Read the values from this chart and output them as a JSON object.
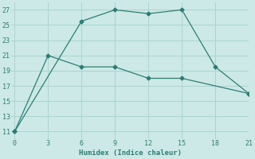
{
  "line1_x": [
    0,
    6,
    9,
    12,
    15,
    18,
    21
  ],
  "line1_y": [
    11,
    25.5,
    27,
    26.5,
    27,
    19.5,
    16
  ],
  "line2_x": [
    0,
    3,
    6,
    9,
    12,
    15,
    21
  ],
  "line2_y": [
    11,
    21,
    19.5,
    19.5,
    18,
    18,
    16
  ],
  "line_color": "#2e7d72",
  "bg_color": "#cce9e7",
  "grid_color": "#aad4d1",
  "xlabel": "Humidex (Indice chaleur)",
  "yticks": [
    11,
    13,
    15,
    17,
    19,
    21,
    23,
    25,
    27
  ],
  "xticks": [
    0,
    3,
    6,
    9,
    12,
    15,
    18,
    21
  ],
  "ylim": [
    10,
    28
  ],
  "xlim": [
    -0.3,
    21
  ]
}
